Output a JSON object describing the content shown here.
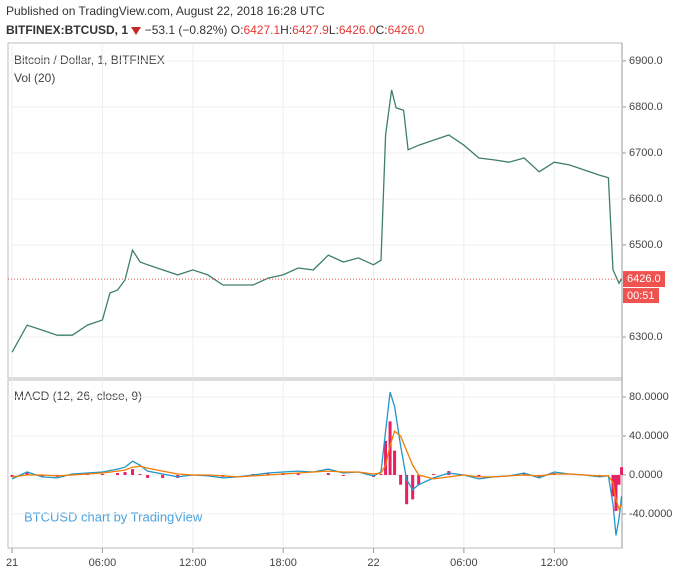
{
  "header": {
    "published": "Published on TradingView.com, August 22, 2018 16:28 UTC",
    "symbol": "BITFINEX:BTCUSD, 1",
    "change": "−53.1 (−0.82%)",
    "ohlc": [
      {
        "key": "O:",
        "value": "6427.1"
      },
      {
        "key": "H:",
        "value": "6427.9"
      },
      {
        "key": "L:",
        "value": "6426.0"
      },
      {
        "key": "C:",
        "value": "6426.0"
      }
    ]
  },
  "watermark": "BTCUSD chart by TradingView",
  "chart_data": [
    {
      "type": "line",
      "title": "Bitcoin / Dollar, 1, BITFINEX",
      "subtitle": "Vol (20)",
      "x": [
        0,
        1,
        2,
        3,
        4,
        5,
        6,
        6.5,
        7,
        7.5,
        8,
        8.5,
        9,
        10,
        11,
        12,
        13,
        14,
        15,
        16,
        17,
        18,
        19,
        20,
        21,
        22,
        23,
        24,
        24.5,
        24.8,
        25.2,
        25.5,
        26,
        26.3,
        27,
        28,
        29,
        30,
        31,
        32,
        33,
        34,
        35,
        36,
        37,
        38,
        39,
        39.6,
        39.9,
        40.3,
        40.47
      ],
      "series": [
        {
          "name": "BTCUSD",
          "color": "#3f7f6c",
          "values": [
            6267,
            6326,
            6315,
            6304,
            6304,
            6326,
            6337,
            6396,
            6402,
            6424,
            6489,
            6463,
            6457,
            6446,
            6435,
            6446,
            6435,
            6413,
            6413,
            6413,
            6428,
            6435,
            6450,
            6446,
            6478,
            6463,
            6472,
            6457,
            6467,
            6739,
            6837,
            6798,
            6793,
            6707,
            6717,
            6728,
            6739,
            6717,
            6689,
            6685,
            6680,
            6689,
            6659,
            6680,
            6674,
            6663,
            6652,
            6646,
            6446,
            6417,
            6426
          ]
        }
      ],
      "ylim": [
        6211,
        6939
      ],
      "yticks": [
        {
          "value": 6300,
          "label": "6300.0"
        },
        {
          "value": 6500,
          "label": "6500.0"
        },
        {
          "value": 6600,
          "label": "6600.0"
        },
        {
          "value": 6700,
          "label": "6700.0"
        },
        {
          "value": 6800,
          "label": "6800.0"
        },
        {
          "value": 6900,
          "label": "6900.0"
        }
      ],
      "last_price": {
        "value": 6426,
        "label": "6426.0"
      },
      "countdown": "00:51",
      "last_color": "#ef5350",
      "grid": true
    },
    {
      "type": "line",
      "title": "MACD (12, 26, close, 9)",
      "x": [
        0,
        1,
        2,
        3,
        4,
        5,
        6,
        7,
        7.5,
        8,
        8.5,
        9,
        10,
        11,
        12,
        13,
        14,
        15,
        16,
        17,
        18,
        19,
        20,
        21,
        22,
        23,
        24,
        24.5,
        24.8,
        25.1,
        25.4,
        25.8,
        26.2,
        26.6,
        27,
        28,
        29,
        30,
        31,
        32,
        33,
        34,
        35,
        36,
        37,
        38,
        39,
        39.6,
        39.9,
        40.1,
        40.3,
        40.47
      ],
      "series": [
        {
          "name": "Histogram",
          "type": "bar",
          "color": "#e91e63",
          "values": [
            -2,
            3,
            -2,
            -2,
            1,
            1,
            1,
            2,
            3,
            6,
            1,
            -3,
            -3,
            -3,
            0,
            -1,
            -2,
            0,
            1,
            2,
            2,
            2,
            0,
            2,
            -1,
            0,
            -2,
            1,
            35,
            55,
            25,
            -10,
            -30,
            -25,
            -10,
            1,
            4,
            0,
            -2,
            0,
            0,
            2,
            -2,
            2,
            0,
            0,
            -1,
            0,
            -22,
            -37,
            -10,
            8
          ]
        },
        {
          "name": "MACD",
          "color": "#2196c8",
          "values": [
            -4,
            3,
            -2,
            -3,
            1,
            2,
            3,
            6,
            8,
            14,
            10,
            4,
            1,
            -2,
            0,
            -1,
            -3,
            -2,
            0,
            2,
            3,
            4,
            3,
            6,
            2,
            3,
            -1,
            3,
            45,
            85,
            70,
            30,
            -5,
            -15,
            -10,
            -3,
            2,
            0,
            -4,
            -2,
            -1,
            2,
            -3,
            3,
            1,
            0,
            -2,
            -1,
            -30,
            -62,
            -45,
            -22
          ]
        },
        {
          "name": "Signal",
          "color": "#f57c00",
          "values": [
            -2,
            0,
            0,
            -1,
            0,
            1,
            2,
            4,
            5,
            8,
            9,
            7,
            4,
            1,
            0,
            0,
            -1,
            -2,
            -1,
            0,
            1,
            2,
            3,
            4,
            3,
            3,
            1,
            2,
            10,
            30,
            45,
            40,
            25,
            10,
            0,
            -4,
            -2,
            0,
            -2,
            -2,
            -1,
            0,
            -1,
            1,
            1,
            0,
            -1,
            -1,
            -8,
            -25,
            -35,
            -30
          ]
        }
      ],
      "ylim": [
        -74.9,
        97.4
      ],
      "yticks": [
        {
          "value": -40,
          "label": "-40.0000"
        },
        {
          "value": 0,
          "label": "0.0000"
        },
        {
          "value": 40,
          "label": "40.0000"
        },
        {
          "value": 80,
          "label": "80.0000"
        }
      ],
      "xlim": [
        -0.27,
        40.5
      ],
      "xticks": [
        {
          "value": 0,
          "label": "21"
        },
        {
          "value": 6,
          "label": "06:00"
        },
        {
          "value": 12,
          "label": "12:00"
        },
        {
          "value": 18,
          "label": "18:00"
        },
        {
          "value": 24,
          "label": "22"
        },
        {
          "value": 30,
          "label": "06:00"
        },
        {
          "value": 36,
          "label": "12:00"
        }
      ],
      "grid": true
    }
  ]
}
